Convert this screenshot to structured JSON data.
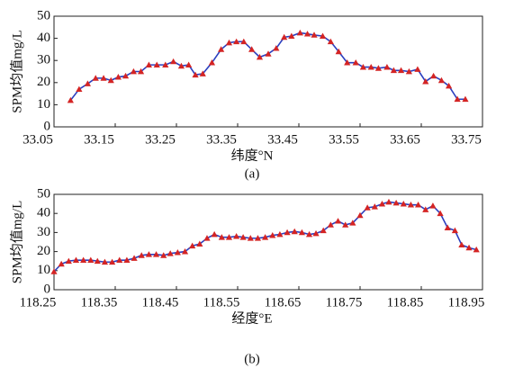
{
  "chart_data": [
    {
      "type": "line",
      "y_label": "SPM均值mg/L",
      "x_label": "纬度°N",
      "caption": "(a)",
      "line_color": "#2b3fbf",
      "marker_color": "#d42424",
      "x": [
        33.077,
        33.091,
        33.105,
        33.118,
        33.131,
        33.143,
        33.155,
        33.167,
        33.18,
        33.192,
        33.205,
        33.218,
        33.232,
        33.245,
        33.258,
        33.27,
        33.281,
        33.293,
        33.308,
        33.323,
        33.336,
        33.348,
        33.36,
        33.373,
        33.386,
        33.4,
        33.413,
        33.426,
        33.438,
        33.452,
        33.464,
        33.475,
        33.489,
        33.502,
        33.515,
        33.529,
        33.543,
        33.555,
        33.568,
        33.58,
        33.594,
        33.605,
        33.617,
        33.63,
        33.644,
        33.657,
        33.67,
        33.683,
        33.695,
        33.709,
        33.722
      ],
      "values": [
        12,
        17,
        19.5,
        22,
        22,
        21,
        22.5,
        23,
        25,
        25,
        28,
        28,
        28,
        29.5,
        27.5,
        28,
        23.5,
        24,
        29,
        35,
        38,
        38.5,
        38.5,
        35,
        31.5,
        33,
        35.5,
        40.5,
        41,
        42.5,
        42,
        41.5,
        41,
        38.5,
        34,
        29,
        29,
        27,
        27,
        26.5,
        27,
        25.5,
        25.5,
        25,
        26,
        20.5,
        23,
        21,
        18.5,
        12.5,
        12.5
      ],
      "xlim": [
        33.05,
        33.75
      ],
      "xticks": [
        33.05,
        33.15,
        33.25,
        33.35,
        33.45,
        33.55,
        33.65,
        33.75
      ],
      "ylim": [
        0,
        50
      ],
      "yticks": [
        0,
        10,
        20,
        30,
        40,
        50
      ]
    },
    {
      "type": "line",
      "y_label": "SPM均值mg/L",
      "x_label": "经度°E",
      "caption": "(b)",
      "line_color": "#2b3fbf",
      "marker_color": "#d42424",
      "x": [
        118.25,
        118.262,
        118.274,
        118.286,
        118.298,
        118.31,
        118.321,
        118.333,
        118.345,
        118.357,
        118.369,
        118.381,
        118.393,
        118.405,
        118.417,
        118.429,
        118.44,
        118.452,
        118.464,
        118.476,
        118.488,
        118.5,
        118.512,
        118.524,
        118.536,
        118.548,
        118.559,
        118.571,
        118.583,
        118.595,
        118.607,
        118.619,
        118.631,
        118.643,
        118.655,
        118.667,
        118.678,
        118.69,
        118.702,
        118.714,
        118.726,
        118.738,
        118.75,
        118.762,
        118.774,
        118.786,
        118.797,
        118.809,
        118.821,
        118.833,
        118.845,
        118.857,
        118.869,
        118.881,
        118.893,
        118.905,
        118.916,
        118.928,
        118.94
      ],
      "values": [
        9.5,
        13.5,
        15,
        15.5,
        15.5,
        15.5,
        15,
        14.5,
        14.5,
        15.5,
        15.5,
        16.5,
        18,
        18.5,
        18.5,
        18,
        19,
        19.5,
        20,
        23,
        24,
        27,
        29,
        27.5,
        27.5,
        28,
        27.5,
        27,
        27,
        27.5,
        28.5,
        29,
        30,
        30.5,
        30,
        29,
        29.5,
        31,
        34,
        36,
        34,
        35,
        39,
        43,
        43.5,
        45,
        46,
        45.5,
        45,
        44.5,
        44.5,
        42,
        44,
        40,
        32.5,
        31,
        23.5,
        22,
        21
      ],
      "xlim": [
        118.25,
        118.95
      ],
      "xticks": [
        118.25,
        118.35,
        118.45,
        118.55,
        118.65,
        118.75,
        118.85,
        118.95
      ],
      "ylim": [
        0,
        50
      ],
      "yticks": [
        0,
        10,
        20,
        30,
        40,
        50
      ]
    }
  ]
}
